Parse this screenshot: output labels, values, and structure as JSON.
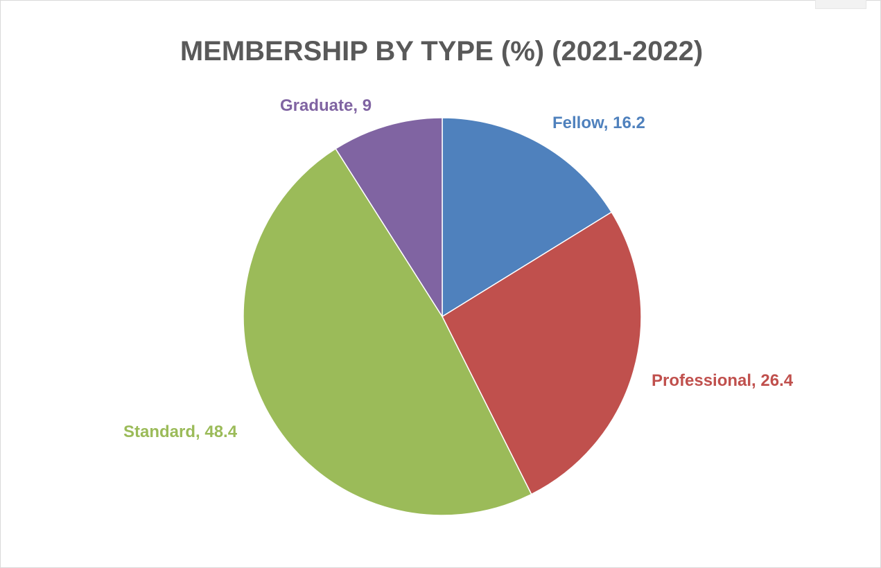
{
  "chart_data": {
    "type": "pie",
    "title": "MEMBERSHIP BY TYPE (%) (2021-2022)",
    "start_angle_deg": 0,
    "direction": "clockwise",
    "legend": "none",
    "slices": [
      {
        "name": "Fellow",
        "value": 16.2,
        "label": "Fellow, 16.2",
        "color": "#4F81BD"
      },
      {
        "name": "Professional",
        "value": 26.4,
        "label": "Professional, 26.4",
        "color": "#C0504D"
      },
      {
        "name": "Standard",
        "value": 48.4,
        "label": "Standard, 48.4",
        "color": "#9BBB59"
      },
      {
        "name": "Graduate",
        "value": 9,
        "label": "Graduate, 9",
        "color": "#8064A2"
      }
    ]
  }
}
